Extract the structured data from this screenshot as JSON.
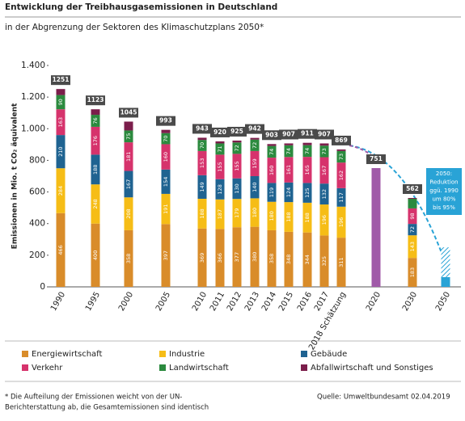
{
  "chart_data": {
    "type": "stacked_bar",
    "title": "Entwicklung der Treibhausgasemissionen  in Deutschland",
    "subtitle": "in der Abgrenzung  der Sektoren des Klimaschutzplans  2050*",
    "y_label": "Emissionen in Mio. t CO₂ äquivalent",
    "categories": [
      "1990",
      "1995",
      "2000",
      "2005",
      "2010",
      "2011",
      "2012",
      "2013",
      "2014",
      "2015",
      "2016",
      "2017",
      "2018 Schätzung",
      "2020",
      "2030",
      "2050"
    ],
    "series": [
      {
        "name": "Energiewirtschaft",
        "color": "#d98c2a",
        "values": [
          466,
          400,
          358,
          397,
          369,
          366,
          377,
          380,
          358,
          348,
          344,
          325,
          311,
          null,
          183,
          null
        ]
      },
      {
        "name": "Industrie",
        "color": "#f6bd16",
        "values": [
          284,
          248,
          208,
          191,
          188,
          187,
          179,
          180,
          180,
          188,
          188,
          196,
          196,
          null,
          143,
          null
        ]
      },
      {
        "name": "Gebäude",
        "color": "#1f6391",
        "values": [
          210,
          188,
          167,
          154,
          149,
          128,
          130,
          140,
          119,
          124,
          125,
          132,
          117,
          null,
          72,
          null
        ]
      },
      {
        "name": "Verkehr",
        "color": "#d6336c",
        "values": [
          163,
          176,
          181,
          160,
          153,
          155,
          155,
          159,
          160,
          161,
          165,
          167,
          162,
          null,
          98,
          null
        ]
      },
      {
        "name": "Landwirtschaft",
        "color": "#2b8a3e",
        "values": [
          90,
          76,
          75,
          70,
          70,
          71,
          72,
          72,
          74,
          74,
          74,
          73,
          73,
          null,
          61,
          null
        ]
      },
      {
        "name": "Abfallwirtschaft und Sonstiges",
        "color": "#7b1e4b",
        "values": [
          38,
          35,
          56,
          21,
          14,
          13,
          12,
          11,
          12,
          12,
          15,
          14,
          10,
          null,
          5,
          null
        ]
      },
      {
        "color": "#a05aa8",
        "values": [
          null,
          null,
          null,
          null,
          null,
          null,
          null,
          null,
          null,
          null,
          null,
          null,
          null,
          751,
          null,
          null
        ]
      },
      {
        "color": "#29a3d6",
        "values": [
          null,
          null,
          null,
          null,
          null,
          null,
          null,
          null,
          null,
          null,
          null,
          null,
          null,
          null,
          null,
          62
        ]
      },
      {
        "color": "#29a3d6",
        "hatched": true,
        "values": [
          null,
          null,
          null,
          null,
          null,
          null,
          null,
          null,
          null,
          null,
          null,
          null,
          null,
          null,
          null,
          188
        ]
      }
    ],
    "totals": [
      1251,
      1123,
      1045,
      993,
      943,
      920,
      925,
      942,
      903,
      907,
      911,
      907,
      869,
      751,
      562,
      null
    ],
    "ylim": [
      0,
      1400
    ],
    "yticks": [
      0,
      200,
      400,
      600,
      800,
      {
        "value": 1000,
        "label": "1.000"
      },
      {
        "value": 1200,
        "label": "1.200"
      },
      {
        "value": 1400,
        "label": "1.400"
      }
    ],
    "annotation": [
      "2050:",
      "Reduktion",
      "ggü. 1990",
      "um 80%",
      "bis 95%"
    ],
    "footnote": [
      "* Die Aufteilung der Emissionen weicht von der UN-",
      "Berichterstattung ab, die Gesamtemissionen sind identisch"
    ],
    "source": "Quelle: Umweltbundesamt 02.04.2019"
  }
}
